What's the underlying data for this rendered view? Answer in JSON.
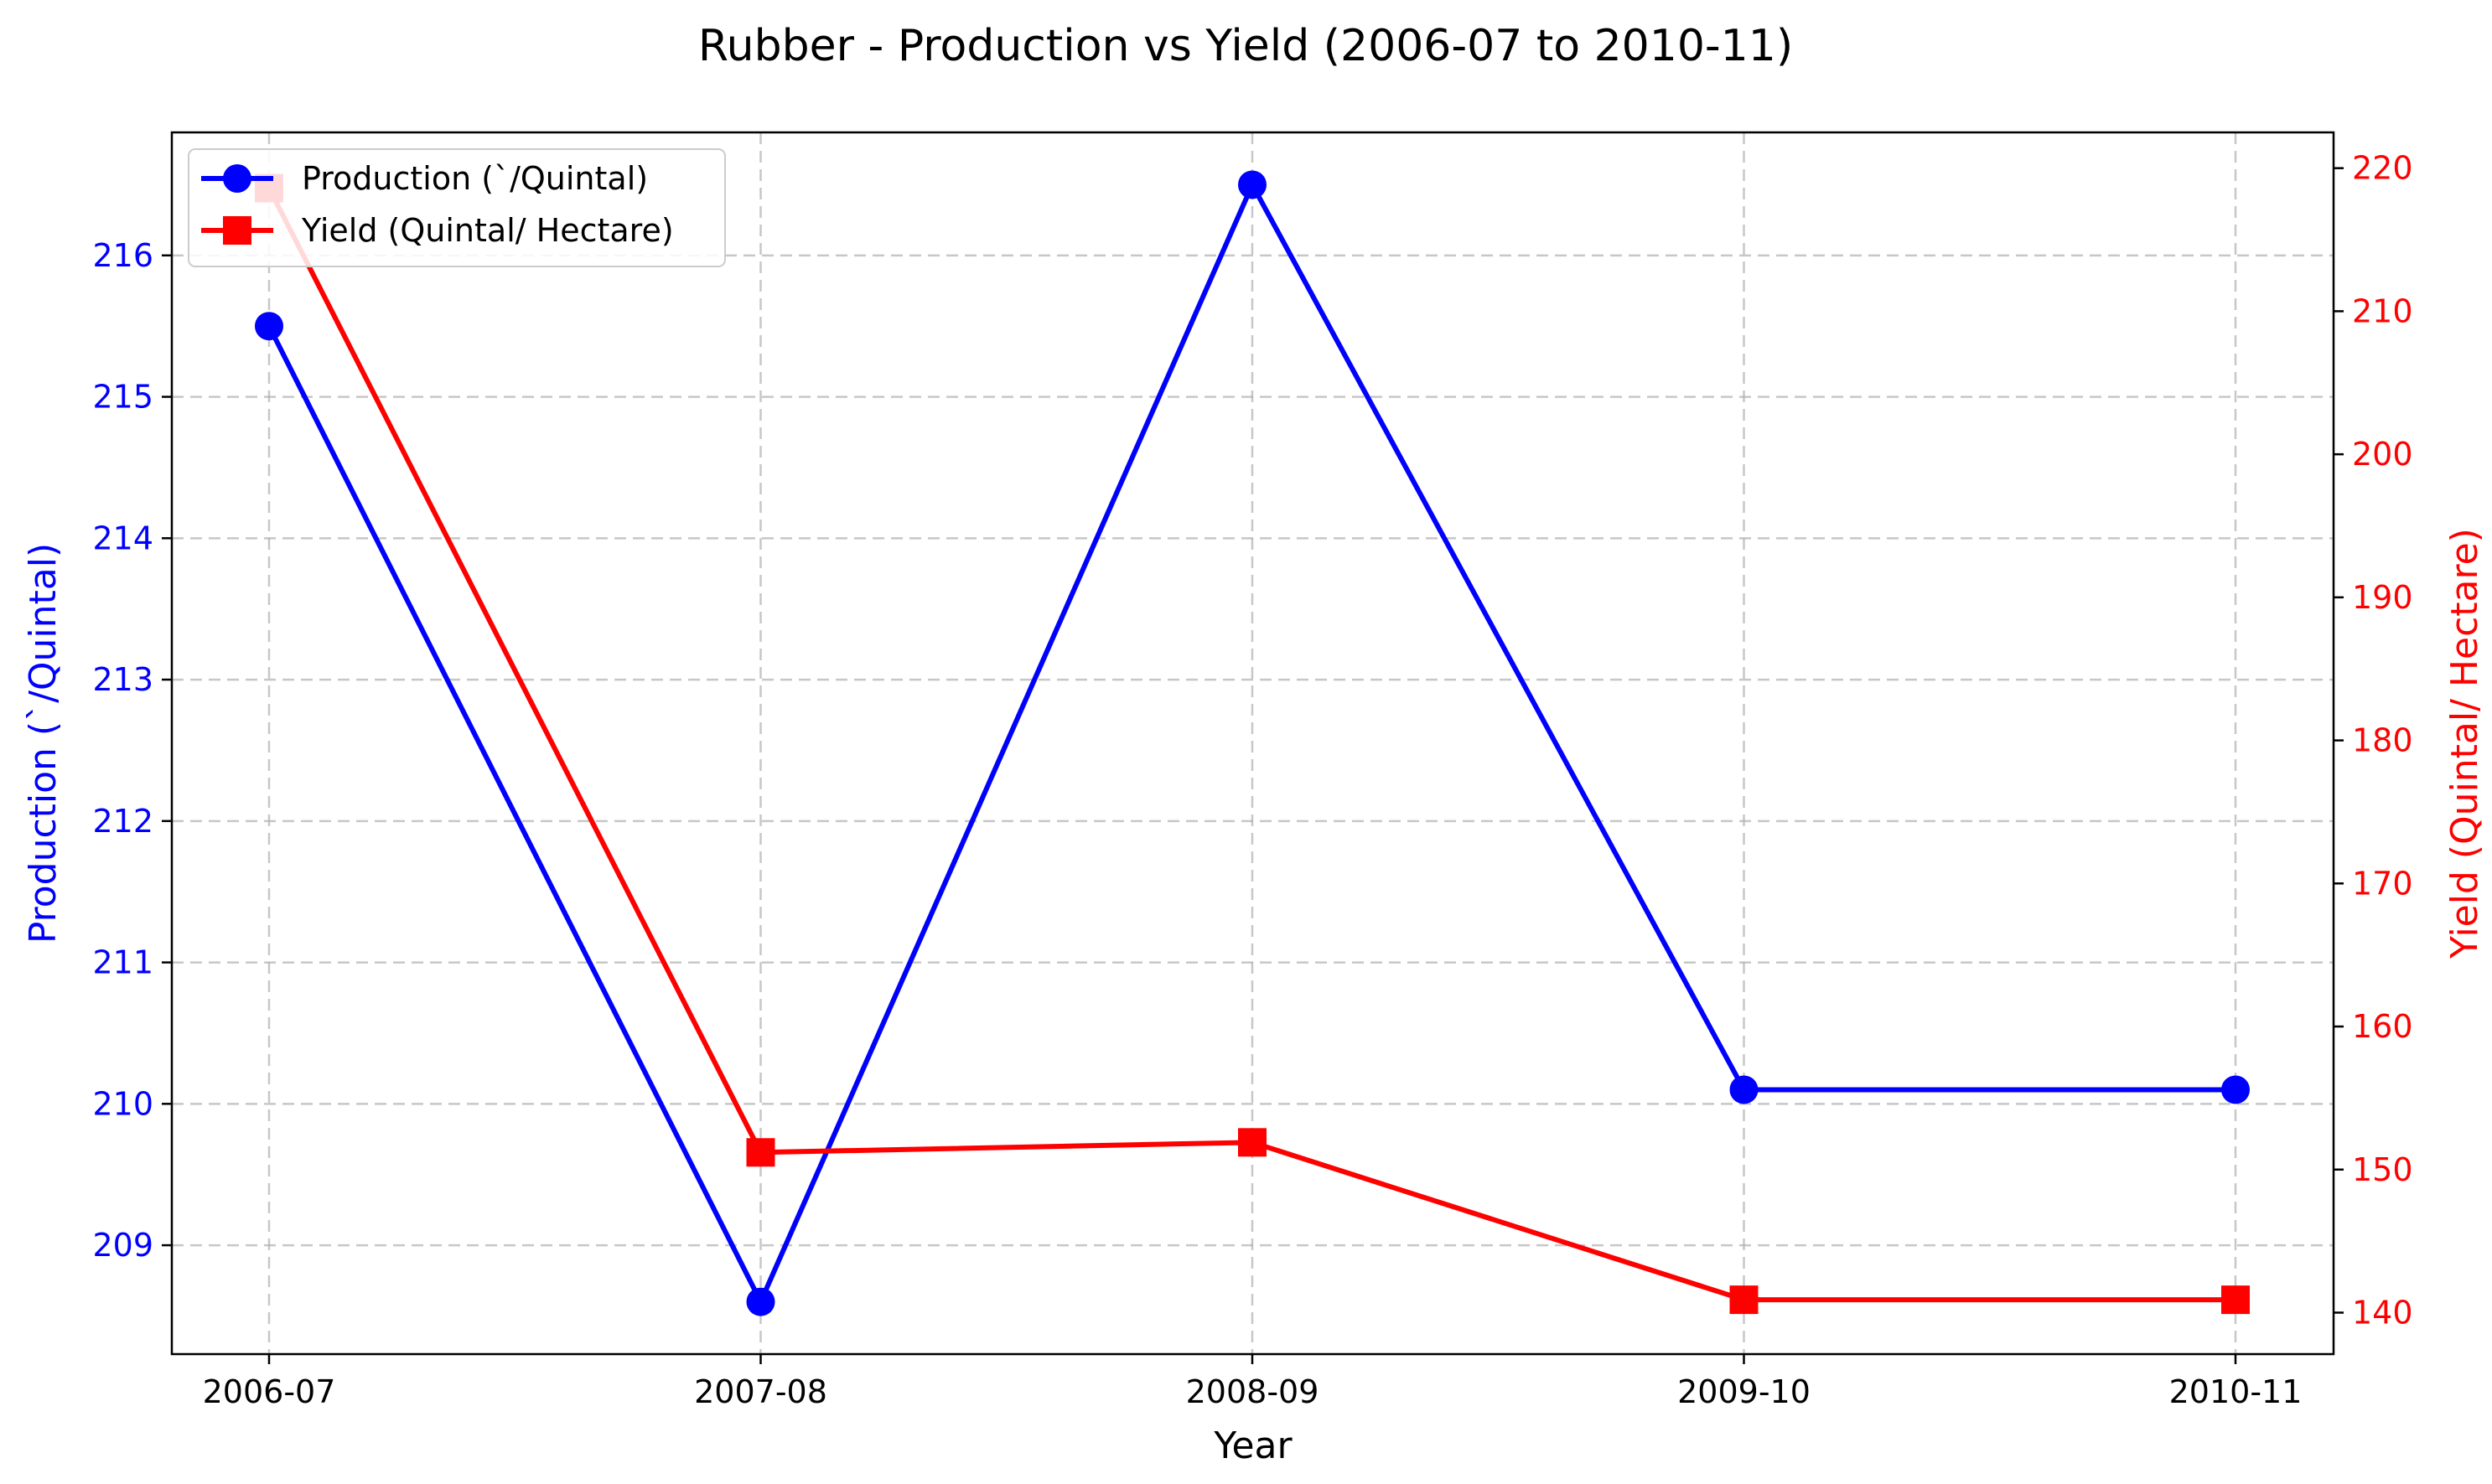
{
  "chart_data": {
    "type": "line",
    "title": "Rubber  - Production vs Yield (2006-07 to 2010-11)",
    "xlabel": "Year",
    "categories": [
      "2006-07",
      "2007-08",
      "2008-09",
      "2009-10",
      "2010-11"
    ],
    "grid": true,
    "legend_position": "upper-left",
    "axes": {
      "left": {
        "label": "Production (`/Quintal)",
        "ylim": [
          208.23,
          216.87
        ],
        "ticks": [
          209,
          210,
          211,
          212,
          213,
          214,
          215,
          216
        ],
        "color": "#0000ff"
      },
      "right": {
        "label": "Yield (Quintal/ Hectare)",
        "ylim": [
          137.1,
          222.5
        ],
        "ticks": [
          140,
          150,
          160,
          170,
          180,
          190,
          200,
          210,
          220
        ],
        "color": "#ff0000"
      }
    },
    "series": [
      {
        "name": "Production (`/Quintal)",
        "axis": "left",
        "color": "#0000ff",
        "marker": "circle",
        "values": [
          215.5,
          208.6,
          216.5,
          210.1,
          210.1
        ]
      },
      {
        "name": "Yield (Quintal/ Hectare)",
        "axis": "right",
        "color": "#ff0000",
        "marker": "square",
        "values": [
          218.6,
          151.2,
          151.9,
          140.9,
          140.9
        ]
      }
    ]
  }
}
